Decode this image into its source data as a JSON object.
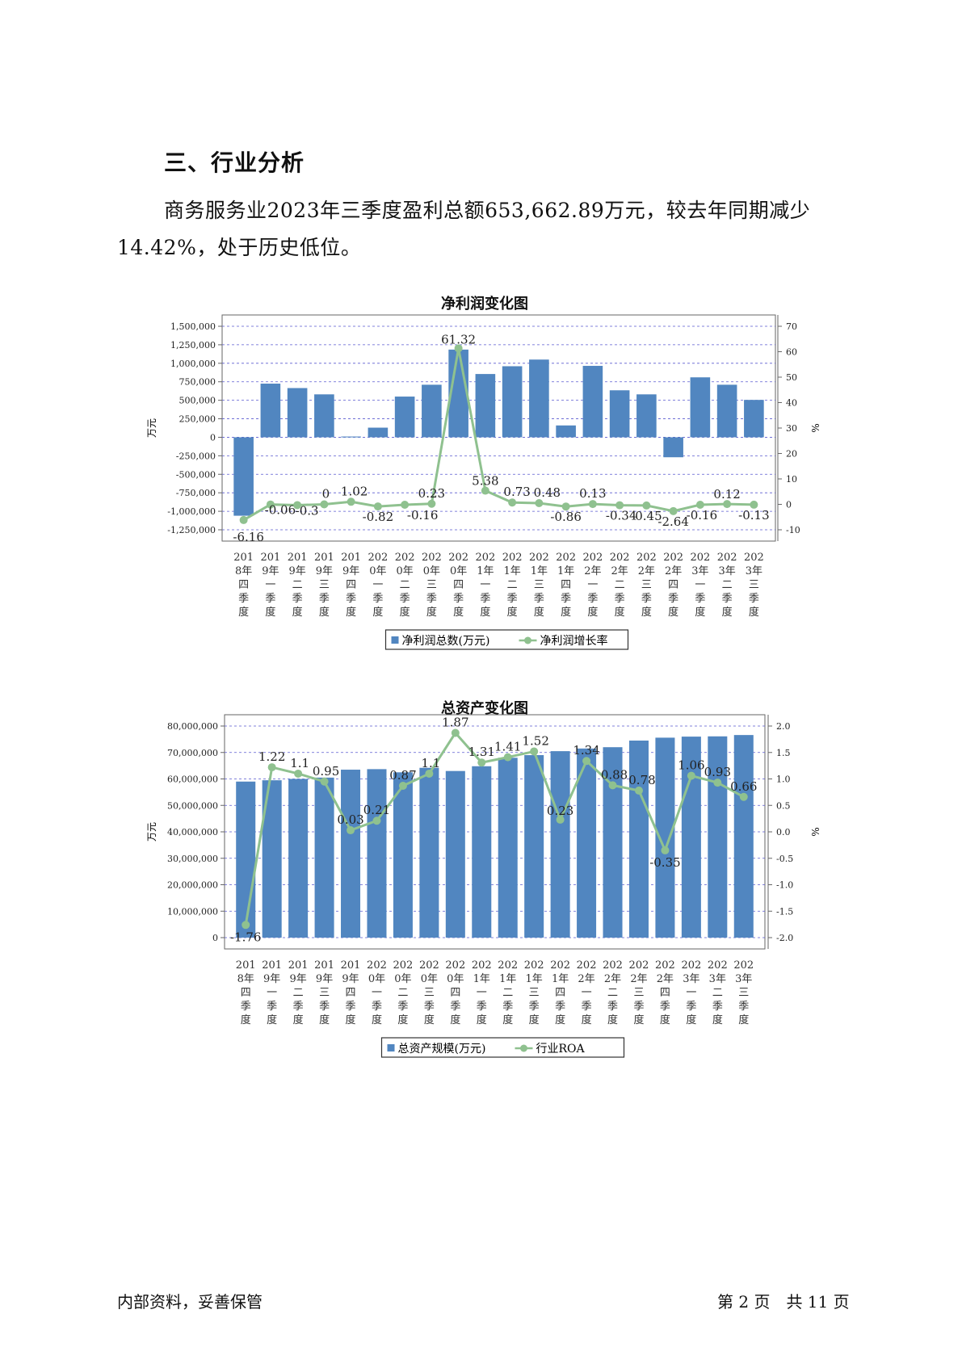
{
  "section": {
    "heading": "三、行业分析",
    "paragraph": "商务服务业2023年三季度盈利总额653,662.89万元，较去年同期减少14.42%，处于历史低位。"
  },
  "colors": {
    "bar": "#5186c0",
    "line": "#8fc18f",
    "grid": "#5a5ad0",
    "frame": "#666666"
  },
  "chart_data": [
    {
      "type": "bar+line",
      "title": "净利润变化图",
      "categories": [
        "2018年四季度",
        "2019年一季度",
        "2019年二季度",
        "2019年三季度",
        "2019年四季度",
        "2020年一季度",
        "2020年二季度",
        "2020年三季度",
        "2020年四季度",
        "2021年一季度",
        "2021年二季度",
        "2021年三季度",
        "2021年四季度",
        "2022年一季度",
        "2022年二季度",
        "2022年三季度",
        "2022年四季度",
        "2023年一季度",
        "2023年二季度",
        "2023年三季度"
      ],
      "category_labels": [
        [
          "201",
          "8年",
          "四",
          "季",
          "度"
        ],
        [
          "201",
          "9年",
          "一",
          "季",
          "度"
        ],
        [
          "201",
          "9年",
          "二",
          "季",
          "度"
        ],
        [
          "201",
          "9年",
          "三",
          "季",
          "度"
        ],
        [
          "201",
          "9年",
          "四",
          "季",
          "度"
        ],
        [
          "202",
          "0年",
          "一",
          "季",
          "度"
        ],
        [
          "202",
          "0年",
          "二",
          "季",
          "度"
        ],
        [
          "202",
          "0年",
          "三",
          "季",
          "度"
        ],
        [
          "202",
          "0年",
          "四",
          "季",
          "度"
        ],
        [
          "202",
          "1年",
          "一",
          "季",
          "度"
        ],
        [
          "202",
          "1年",
          "二",
          "季",
          "度"
        ],
        [
          "202",
          "1年",
          "三",
          "季",
          "度"
        ],
        [
          "202",
          "1年",
          "四",
          "季",
          "度"
        ],
        [
          "202",
          "2年",
          "一",
          "季",
          "度"
        ],
        [
          "202",
          "2年",
          "二",
          "季",
          "度"
        ],
        [
          "202",
          "2年",
          "三",
          "季",
          "度"
        ],
        [
          "202",
          "2年",
          "四",
          "季",
          "度"
        ],
        [
          "202",
          "3年",
          "一",
          "季",
          "度"
        ],
        [
          "202",
          "3年",
          "二",
          "季",
          "度"
        ],
        [
          "202",
          "3年",
          "三",
          "季",
          "度"
        ]
      ],
      "series": [
        {
          "name": "净利润总数(万元)",
          "kind": "bar",
          "axis": "left",
          "values": [
            -1060000,
            725000,
            665000,
            580000,
            10000,
            130000,
            550000,
            710000,
            1185000,
            855000,
            960000,
            1050000,
            160000,
            965000,
            635000,
            580000,
            -270000,
            810000,
            710000,
            505000
          ]
        },
        {
          "name": "净利润增长率",
          "kind": "line",
          "axis": "right",
          "values": [
            -6.16,
            -0.06,
            -0.3,
            0,
            1.02,
            -0.82,
            -0.16,
            0.23,
            61.32,
            5.38,
            0.73,
            0.48,
            -0.86,
            0.13,
            -0.34,
            -0.45,
            -2.64,
            -0.16,
            0.12,
            -0.13
          ],
          "labels": [
            "-6.16",
            "-0.06",
            "-0.3",
            "0",
            "1.02",
            "-0.82",
            "-0.16",
            "0.23",
            "61.32",
            "5.38",
            "0.73",
            "0.48",
            "-0.86",
            "0.13",
            "-0.34",
            "-0.45",
            "-2.64",
            "-0.16",
            "0.12",
            "-0.13"
          ]
        }
      ],
      "left_axis": {
        "label": "万元",
        "min": -1250000,
        "max": 1500000,
        "ticks": [
          "1,500,000",
          "1,250,000",
          "1,000,000",
          "750,000",
          "500,000",
          "250,000",
          "0",
          "-250,000",
          "-500,000",
          "-750,000",
          "-1,000,000",
          "-1,250,000"
        ],
        "tick_values": [
          1500000,
          1250000,
          1000000,
          750000,
          500000,
          250000,
          0,
          -250000,
          -500000,
          -750000,
          -1000000,
          -1250000
        ]
      },
      "right_axis": {
        "label": "%",
        "min": -10,
        "max": 70,
        "ticks": [
          "70",
          "60",
          "50",
          "40",
          "30",
          "20",
          "10",
          "0",
          "-10"
        ],
        "tick_values": [
          70,
          60,
          50,
          40,
          30,
          20,
          10,
          0,
          -10
        ]
      },
      "grid": true,
      "legend": "bottom-center"
    },
    {
      "type": "bar+line",
      "title": "总资产变化图",
      "categories": [
        "2018年四季度",
        "2019年一季度",
        "2019年二季度",
        "2019年三季度",
        "2019年四季度",
        "2020年一季度",
        "2020年二季度",
        "2020年三季度",
        "2020年四季度",
        "2021年一季度",
        "2021年二季度",
        "2021年三季度",
        "2021年四季度",
        "2022年一季度",
        "2022年二季度",
        "2022年三季度",
        "2022年四季度",
        "2023年一季度",
        "2023年二季度",
        "2023年三季度"
      ],
      "category_labels": [
        [
          "201",
          "8年",
          "四",
          "季",
          "度"
        ],
        [
          "201",
          "9年",
          "一",
          "季",
          "度"
        ],
        [
          "201",
          "9年",
          "二",
          "季",
          "度"
        ],
        [
          "201",
          "9年",
          "三",
          "季",
          "度"
        ],
        [
          "201",
          "9年",
          "四",
          "季",
          "度"
        ],
        [
          "202",
          "0年",
          "一",
          "季",
          "度"
        ],
        [
          "202",
          "0年",
          "二",
          "季",
          "度"
        ],
        [
          "202",
          "0年",
          "三",
          "季",
          "度"
        ],
        [
          "202",
          "0年",
          "四",
          "季",
          "度"
        ],
        [
          "202",
          "1年",
          "一",
          "季",
          "度"
        ],
        [
          "202",
          "1年",
          "二",
          "季",
          "度"
        ],
        [
          "202",
          "1年",
          "三",
          "季",
          "度"
        ],
        [
          "202",
          "1年",
          "四",
          "季",
          "度"
        ],
        [
          "202",
          "2年",
          "一",
          "季",
          "度"
        ],
        [
          "202",
          "2年",
          "二",
          "季",
          "度"
        ],
        [
          "202",
          "2年",
          "三",
          "季",
          "度"
        ],
        [
          "202",
          "2年",
          "四",
          "季",
          "度"
        ],
        [
          "202",
          "3年",
          "一",
          "季",
          "度"
        ],
        [
          "202",
          "3年",
          "二",
          "季",
          "度"
        ],
        [
          "202",
          "3年",
          "三",
          "季",
          "度"
        ]
      ],
      "series": [
        {
          "name": "总资产规模(万元)",
          "kind": "bar",
          "axis": "left",
          "values": [
            59000000,
            59500000,
            60000000,
            60500000,
            63500000,
            63700000,
            62500000,
            64200000,
            63000000,
            64800000,
            68000000,
            69000000,
            70500000,
            71500000,
            72000000,
            74500000,
            75600000,
            76000000,
            76100000,
            76600000
          ]
        },
        {
          "name": "行业ROA",
          "kind": "line",
          "axis": "right",
          "values": [
            -1.76,
            1.22,
            1.1,
            0.95,
            0.03,
            0.21,
            0.87,
            1.1,
            1.87,
            1.31,
            1.41,
            1.52,
            0.23,
            1.34,
            0.88,
            0.78,
            -0.35,
            1.06,
            0.93,
            0.66
          ],
          "labels": [
            "-1.76",
            "1.22",
            "1.1",
            "0.95",
            "0.03",
            "0.21",
            "0.87",
            "1.1",
            "1.87",
            "1.31",
            "1.41",
            "1.52",
            "0.23",
            "1.34",
            "0.88",
            "0.78",
            "-0.35",
            "1.06",
            "0.93",
            "0.66"
          ]
        }
      ],
      "left_axis": {
        "label": "万元",
        "min": 0,
        "max": 80000000,
        "ticks": [
          "80,000,000",
          "70,000,000",
          "60,000,000",
          "50,000,000",
          "40,000,000",
          "30,000,000",
          "20,000,000",
          "10,000,000",
          "0"
        ],
        "tick_values": [
          80000000,
          70000000,
          60000000,
          50000000,
          40000000,
          30000000,
          20000000,
          10000000,
          0
        ]
      },
      "right_axis": {
        "label": "%",
        "min": -2.0,
        "max": 2.0,
        "ticks": [
          "2.0",
          "1.5",
          "1.0",
          "0.5",
          "0.0",
          "-0.5",
          "-1.0",
          "-1.5",
          "-2.0"
        ],
        "tick_values": [
          2.0,
          1.5,
          1.0,
          0.5,
          0.0,
          -0.5,
          -1.0,
          -1.5,
          -2.0
        ]
      },
      "grid": true,
      "legend": "bottom-center"
    }
  ],
  "footer": {
    "left": "内部资料，妥善保管",
    "right": "第 2 页　共 11 页"
  }
}
